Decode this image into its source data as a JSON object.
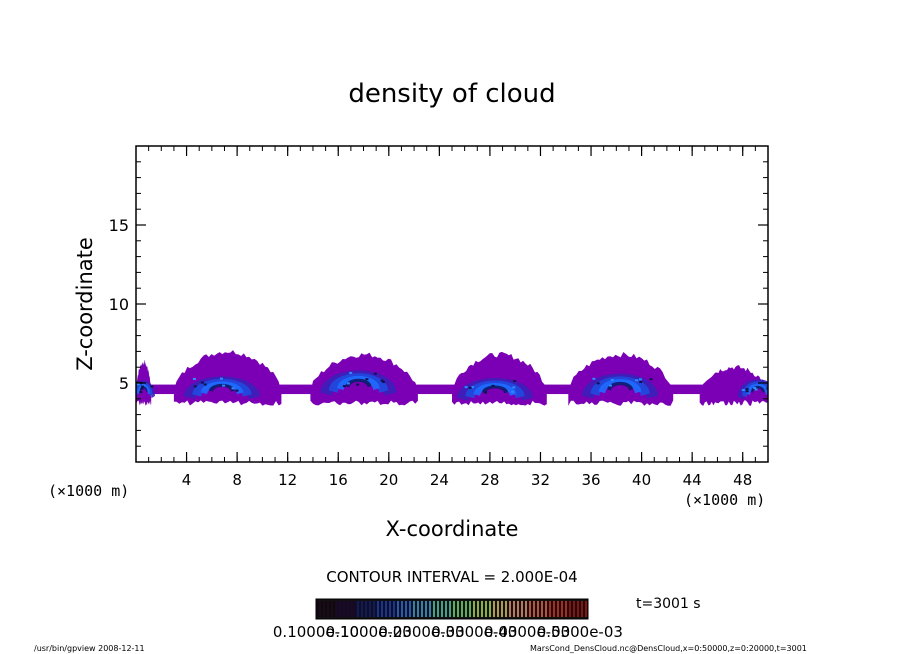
{
  "chart_data": {
    "type": "heatmap",
    "title": "density of cloud",
    "xlabel": "X-coordinate",
    "ylabel": "Z-coordinate",
    "x_unit": "(×1000 m)",
    "y_unit": "(×1000 m)",
    "xlim": [
      0,
      50
    ],
    "ylim": [
      0,
      20
    ],
    "x_ticks": [
      4,
      8,
      12,
      16,
      20,
      24,
      28,
      32,
      36,
      40,
      44,
      48
    ],
    "y_ticks": [
      5,
      10,
      15
    ],
    "x_minor_step": 1,
    "y_minor_step": 1,
    "contour_interval_label": "CONTOUR INTERVAL = 2.000E-04",
    "time_label": "t=3001 s",
    "colorbar_labels": [
      "0.1000e-10",
      "0.1000e-03",
      "0.2000e-03",
      "0.3000e-03",
      "0.4000e-03",
      "0.5000e-03"
    ],
    "cloud_base_z": 3.7,
    "cells": [
      {
        "x_min": 0.0,
        "x_max": 1.2,
        "top_z": 6.3,
        "core_x": 0.6,
        "core_z": 4.6,
        "core_w": 0.9,
        "core_h": 0.7,
        "peak": 0.55
      },
      {
        "x_min": 3.0,
        "x_max": 11.5,
        "top_z": 7.0,
        "core_x": 6.8,
        "core_z": 4.7,
        "core_w": 3.0,
        "core_h": 0.9,
        "peak": 0.6
      },
      {
        "x_min": 13.8,
        "x_max": 22.3,
        "top_z": 6.8,
        "core_x": 17.6,
        "core_z": 5.0,
        "core_w": 3.0,
        "core_h": 1.0,
        "peak": 0.62
      },
      {
        "x_min": 25.0,
        "x_max": 32.5,
        "top_z": 6.8,
        "core_x": 28.4,
        "core_z": 4.6,
        "core_w": 3.0,
        "core_h": 0.9,
        "peak": 0.58
      },
      {
        "x_min": 34.2,
        "x_max": 42.5,
        "top_z": 6.8,
        "core_x": 38.3,
        "core_z": 4.8,
        "core_w": 3.0,
        "core_h": 1.0,
        "peak": 0.6
      },
      {
        "x_min": 44.6,
        "x_max": 50.0,
        "top_z": 6.0,
        "core_x": 49.2,
        "core_z": 4.6,
        "core_w": 1.6,
        "core_h": 0.8,
        "peak": 0.55
      }
    ],
    "colors": {
      "outer": "#7b00b5",
      "levels": [
        "#7b00b5",
        "#3a1fb8",
        "#1f4be0",
        "#1e6cff",
        "#0d1a6b"
      ]
    },
    "colorbar_colors": [
      "#180018",
      "#200040",
      "#101a80",
      "#1a3cc8",
      "#2a6ae8",
      "#3d9ad8",
      "#4fc6a8",
      "#70d870",
      "#a8d850",
      "#d8c060",
      "#e89070",
      "#e86048",
      "#d83020",
      "#b01010"
    ]
  },
  "footer": {
    "program": "/usr/bin/gpview   2008-12-11",
    "source": "MarsCond_DensCloud.nc@DensCloud,x=0:50000,z=0:20000,t=3001"
  }
}
